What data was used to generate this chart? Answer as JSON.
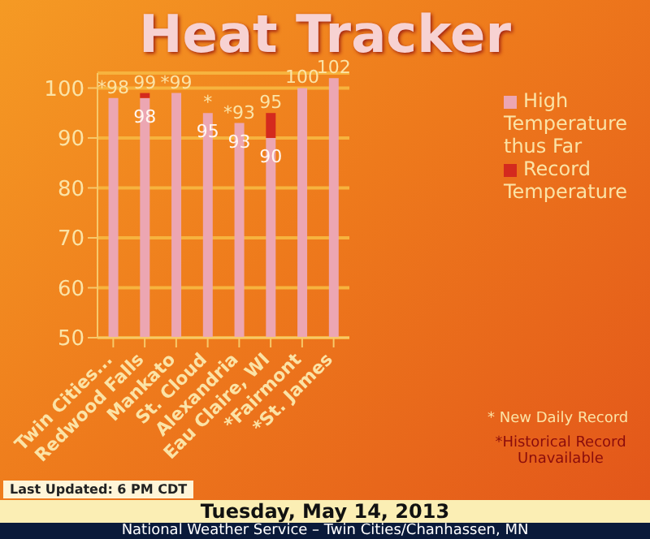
{
  "chart_data": {
    "type": "bar",
    "title": "Heat Tracker",
    "categories": [
      "Twin Cities...",
      "Redwood Falls",
      "Mankato",
      "St. Cloud",
      "Alexandria",
      "Eau Claire, WI",
      "*Fairmont",
      "*St. James"
    ],
    "series": [
      {
        "name": "High Temperature thus Far",
        "color": "#eca6b2",
        "values": [
          98,
          98,
          99,
          95,
          93,
          90,
          100,
          102
        ],
        "value_labels": [
          null,
          "98",
          null,
          "95",
          "93",
          "90",
          null,
          null
        ]
      },
      {
        "name": "Record Temperature",
        "color": "#d42a1e",
        "values": [
          null,
          1,
          null,
          null,
          null,
          5,
          null,
          null
        ],
        "base": [
          null,
          98,
          null,
          null,
          null,
          90,
          null,
          null
        ]
      }
    ],
    "totals": [
      "*98",
      "99",
      "*99",
      "*",
      "*93",
      "95",
      "100",
      "102"
    ],
    "ylim": [
      50,
      103
    ],
    "yticks": [
      50,
      60,
      70,
      80,
      90,
      100
    ],
    "grid": "y",
    "legend": "right",
    "annotations": [
      "* New Daily Record",
      "*Historical Record Unavailable",
      "Last Updated: 6 PM CDT",
      "Tuesday, May 14, 2013",
      "National Weather Service – Twin Cities/Chanhassen, MN"
    ]
  }
}
